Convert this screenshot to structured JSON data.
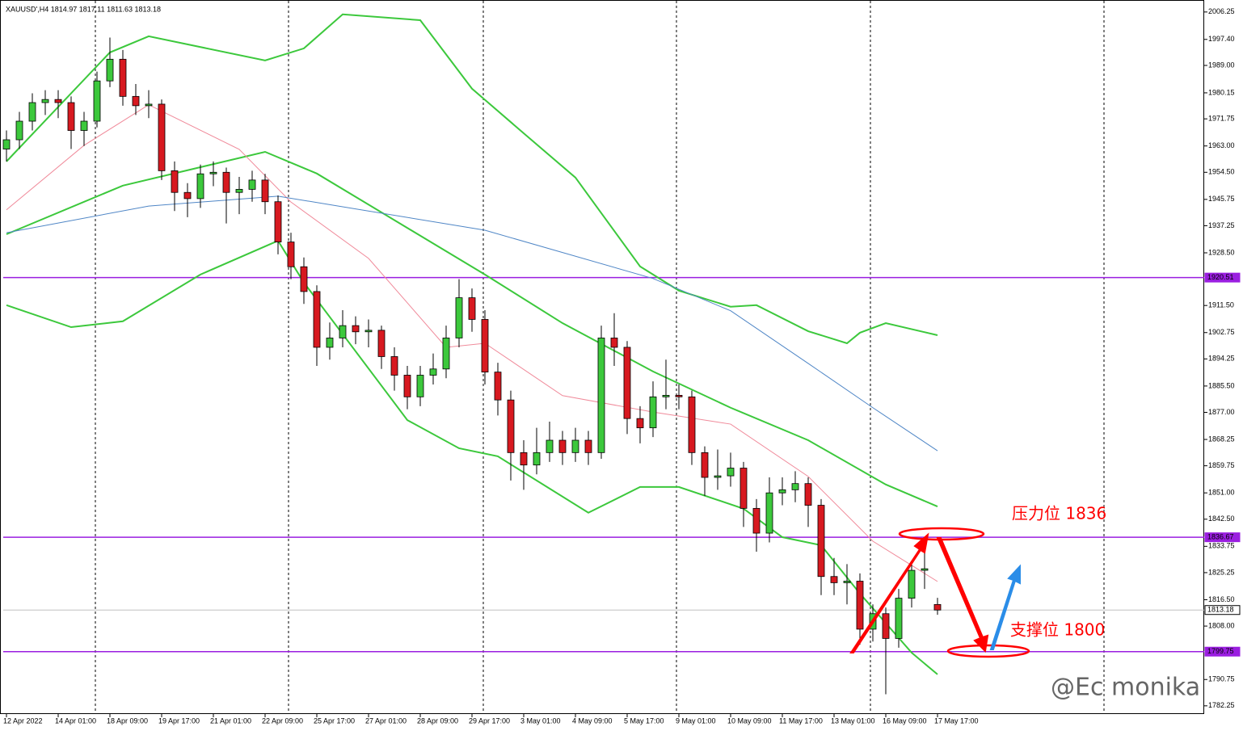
{
  "chart_data": {
    "type": "candlestick",
    "title": "XAUUSD',H4  1814.97 1817.11 1811.63 1813.18",
    "categories": [
      "12 Apr 2022",
      null,
      null,
      null,
      "14 Apr 01:00",
      null,
      null,
      null,
      "18 Apr 09:00",
      null,
      null,
      null,
      "19 Apr 17:00",
      null,
      null,
      null,
      "21 Apr 01:00",
      null,
      null,
      null,
      "22 Apr 09:00",
      null,
      null,
      null,
      "25 Apr 17:00",
      null,
      null,
      null,
      "27 Apr 01:00",
      null,
      null,
      null,
      "28 Apr 09:00",
      null,
      null,
      null,
      "29 Apr 17:00",
      null,
      null,
      null,
      "3 May 01:00",
      null,
      null,
      null,
      "4 May 09:00",
      null,
      null,
      null,
      "5 May 17:00",
      null,
      null,
      null,
      "9 May 01:00",
      null,
      null,
      null,
      "10 May 09:00",
      null,
      null,
      null,
      "11 May 17:00",
      null,
      null,
      null,
      "13 May 01:00",
      null,
      null,
      null,
      "16 May 09:00",
      null,
      null,
      null,
      "17 May 17:00"
    ],
    "open": [
      1962,
      1965,
      1971,
      1977,
      1978,
      1977,
      1968,
      1971,
      1984,
      1991,
      1979,
      1976,
      1976.5,
      1955,
      1948,
      1946,
      1954,
      1954.5,
      1948,
      1949,
      1952,
      1945,
      1932,
      1924,
      1916,
      1898,
      1901,
      1905,
      1903,
      1903.5,
      1895,
      1889,
      1882,
      1889,
      1891,
      1901,
      1914,
      1907,
      1890,
      1881,
      1864,
      1860,
      1864,
      1868,
      1864,
      1868,
      1864,
      1901,
      1898,
      1875,
      1872,
      1882,
      1882.5,
      1882,
      1864,
      1856,
      1856.5,
      1859,
      1846,
      1838,
      1851,
      1852,
      1854,
      1847,
      1824,
      1822,
      1822.5,
      1807,
      1812,
      1804,
      1817,
      1826,
      1814.97
    ],
    "high": [
      1968,
      1974,
      1980,
      1981,
      1981,
      1979,
      1974,
      1987,
      1998,
      1994,
      1983,
      1981,
      1978,
      1958,
      1951,
      1957,
      1958,
      1956,
      1953,
      1955,
      1954,
      1947,
      1935,
      1927,
      1918,
      1906,
      1910,
      1908,
      1907,
      1905,
      1898,
      1892,
      1892,
      1896,
      1905,
      1920,
      1917,
      1910,
      1893,
      1884,
      1868,
      1872,
      1874,
      1871,
      1872,
      1871,
      1905,
      1909,
      1900,
      1879,
      1887,
      1894,
      1886,
      1884,
      1866,
      1865,
      1864,
      1861,
      1849,
      1856,
      1856,
      1858,
      1856,
      1849,
      1830,
      1828,
      1825,
      1815,
      1814,
      1820,
      1829,
      1836,
      1817.11
    ],
    "low": [
      1958,
      1962,
      1968,
      1973,
      1972,
      1962,
      1963,
      1969,
      1982,
      1976,
      1973,
      1972,
      1952,
      1942,
      1940,
      1943,
      1950,
      1938,
      1941,
      1945,
      1941,
      1928,
      1920,
      1912,
      1892,
      1894,
      1898,
      1899,
      1898,
      1891,
      1884,
      1878,
      1879,
      1886,
      1888,
      1898,
      1903,
      1886,
      1876,
      1855,
      1852,
      1857,
      1861,
      1860,
      1861,
      1860,
      1862,
      1892,
      1870,
      1867,
      1869,
      1878,
      1878,
      1860,
      1850,
      1852,
      1853,
      1840,
      1832,
      1835,
      1847,
      1848,
      1840,
      1818,
      1818,
      1815,
      1802,
      1803,
      1786,
      1801,
      1814,
      1820,
      1811.63
    ],
    "close": [
      1965,
      1971,
      1977,
      1978,
      1977,
      1968,
      1971,
      1984,
      1991,
      1979,
      1976,
      1976.5,
      1955,
      1948,
      1946,
      1954,
      1954.5,
      1948,
      1949,
      1952,
      1945,
      1932,
      1924,
      1916,
      1898,
      1901,
      1905,
      1903,
      1903.5,
      1895,
      1889,
      1882,
      1889,
      1891,
      1901,
      1914,
      1907,
      1890,
      1881,
      1864,
      1860,
      1864,
      1868,
      1864,
      1868,
      1864,
      1901,
      1898,
      1875,
      1872,
      1882,
      1882.5,
      1882,
      1864,
      1856,
      1856.5,
      1859,
      1846,
      1838,
      1851,
      1852,
      1854,
      1847,
      1824,
      1822,
      1822.5,
      1807,
      1812,
      1804,
      1817,
      1826,
      1826.5,
      1813.18
    ],
    "up_color": "#3cc83c",
    "down_color": "#d71920",
    "indicators": [
      {
        "color": "#3cc83c",
        "x": [
          0,
          8,
          11,
          20,
          23,
          26,
          32,
          36,
          40,
          44,
          49,
          52,
          56,
          58,
          62,
          65,
          66,
          68,
          72
        ],
        "values": [
          1958.0,
          1993.2,
          1998.4,
          1990.6,
          1994.5,
          2005.5,
          2003.6,
          1981.5,
          1967.1,
          1952.8,
          1924.1,
          1916.3,
          1911.1,
          1911.6,
          1903.2,
          1899.3,
          1902.7,
          1905.8,
          1901.9
        ]
      },
      {
        "color": "#3cc83c",
        "x": [
          0,
          9,
          20,
          24,
          37,
          43,
          50,
          56,
          62,
          68,
          72
        ],
        "values": [
          1934.5,
          1950.2,
          1961.1,
          1954.1,
          1921.5,
          1905.8,
          1890.2,
          1878.5,
          1868.0,
          1853.7,
          1846.6
        ]
      },
      {
        "color": "#3cc83c",
        "x": [
          0,
          5,
          9,
          15,
          21,
          23,
          31,
          35,
          38,
          45,
          49,
          52,
          57,
          60,
          63,
          66,
          70,
          72
        ],
        "values": [
          1911.6,
          1904.5,
          1906.4,
          1921.5,
          1932.4,
          1918.9,
          1874.5,
          1865.4,
          1862.8,
          1844.6,
          1852.9,
          1852.9,
          1845.9,
          1836.7,
          1834.1,
          1818.5,
          1799.4,
          1792.4
        ]
      },
      {
        "color": "#f08a9a",
        "x": [
          0,
          6,
          11,
          18,
          22,
          28,
          34,
          37,
          43,
          50,
          56,
          62,
          67,
          72
        ],
        "values": [
          1942.4,
          1963.2,
          1976.3,
          1961.9,
          1944.9,
          1926.7,
          1898.0,
          1899.3,
          1882.4,
          1877.1,
          1873.2,
          1856.3,
          1835.4,
          1822.4
        ]
      },
      {
        "color": "#4f86c6",
        "x": [
          0,
          11,
          21,
          37,
          50,
          56,
          62,
          67,
          72
        ],
        "values": [
          1935.0,
          1943.6,
          1946.8,
          1935.8,
          1920.2,
          1909.8,
          1892.8,
          1878.5,
          1864.6
        ]
      }
    ],
    "levels": [
      {
        "value": 1920.51,
        "label": "1920.51",
        "color": "#9a1ee0"
      },
      {
        "value": 1836.67,
        "label": "1836.67",
        "color": "#9a1ee0"
      },
      {
        "value": 1813.18,
        "label": "1813.18",
        "color": "#c0c0c0"
      },
      {
        "value": 1799.75,
        "label": "1799.75",
        "color": "#9a1ee0"
      }
    ],
    "ylim": [
      1779.6,
      2009.6
    ],
    "yticks": [
      {
        "value": 2006.25,
        "label": "2006.25"
      },
      {
        "value": 1997.4,
        "label": "1997.40"
      },
      {
        "value": 1989,
        "label": "1989.00"
      },
      {
        "value": 1980.15,
        "label": "1980.15"
      },
      {
        "value": 1971.75,
        "label": "1971.75"
      },
      {
        "value": 1963,
        "label": "1963.00"
      },
      {
        "value": 1954.5,
        "label": "1954.50"
      },
      {
        "value": 1945.75,
        "label": "1945.75"
      },
      {
        "value": 1937.25,
        "label": "1937.25"
      },
      {
        "value": 1928.5,
        "label": "1928.50"
      },
      {
        "value": 1911.5,
        "label": "1911.50"
      },
      {
        "value": 1902.75,
        "label": "1902.75"
      },
      {
        "value": 1894.25,
        "label": "1894.25"
      },
      {
        "value": 1885.5,
        "label": "1885.50"
      },
      {
        "value": 1877,
        "label": "1877.00"
      },
      {
        "value": 1868.25,
        "label": "1868.25"
      },
      {
        "value": 1859.75,
        "label": "1859.75"
      },
      {
        "value": 1851,
        "label": "1851.00"
      },
      {
        "value": 1842.5,
        "label": "1842.50"
      },
      {
        "value": 1833.75,
        "label": "1833.75"
      },
      {
        "value": 1825.25,
        "label": "1825.25"
      },
      {
        "value": 1816.5,
        "label": "1816.50"
      },
      {
        "value": 1808,
        "label": "1808.00"
      },
      {
        "value": 1790.75,
        "label": "1790.75"
      },
      {
        "value": 1782.25,
        "label": "1782.25"
      }
    ],
    "annotations": [
      "压力位 1836",
      "支撑位 1800"
    ],
    "watermark": "@Ec monika"
  }
}
